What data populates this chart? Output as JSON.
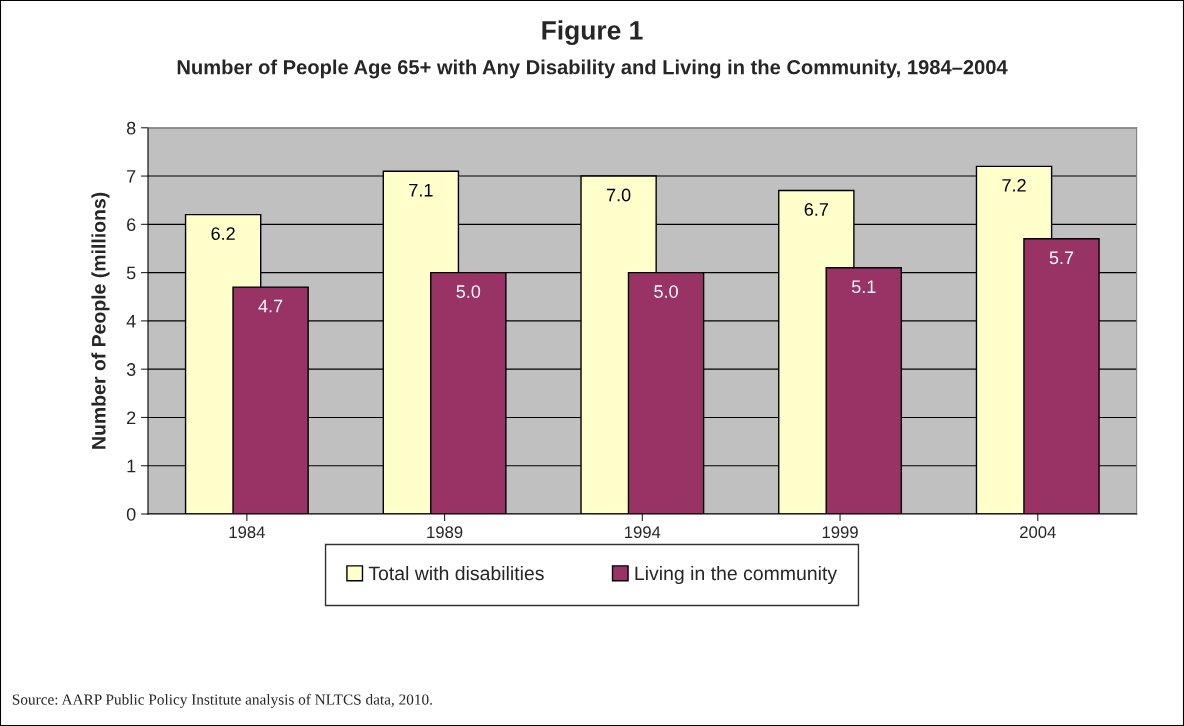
{
  "chart_data": {
    "type": "bar",
    "title": "Figure 1",
    "subtitle": "Number of People Age 65+ with Any Disability and Living in the Community, 1984–2004",
    "ylabel": "Number of People (millions)",
    "categories": [
      "1984",
      "1989",
      "1994",
      "1999",
      "2004"
    ],
    "series": [
      {
        "name": "Total with disabilities",
        "color": "#ffffcc",
        "values": [
          6.2,
          7.1,
          7.0,
          6.7,
          7.2
        ],
        "value_labels": [
          "6.2",
          "7.1",
          "7.0",
          "6.7",
          "7.2"
        ]
      },
      {
        "name": "Living in the community",
        "color": "#993366",
        "values": [
          4.7,
          5.0,
          5.0,
          5.1,
          5.7
        ],
        "value_labels": [
          "4.7",
          "5.0",
          "5.0",
          "5.1",
          "5.7"
        ]
      }
    ],
    "ylim": [
      0,
      8
    ],
    "yticks": [
      0,
      1,
      2,
      3,
      4,
      5,
      6,
      7,
      8
    ],
    "grid": "y",
    "legend": "bottom",
    "annotations": [
      "Source: AARP Public Policy Institute analysis of NLTCS data, 2010."
    ]
  }
}
